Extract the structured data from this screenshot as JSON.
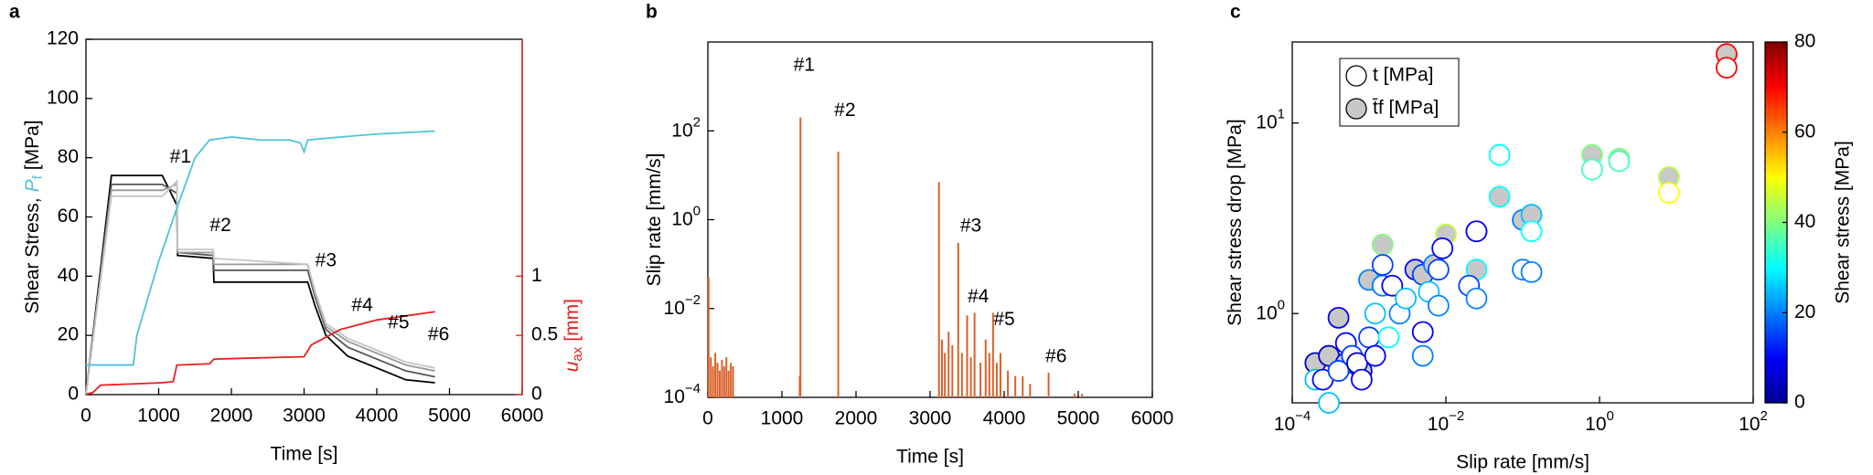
{
  "chart_data": [
    {
      "type": "line",
      "panel": "a",
      "xlabel": "Time [s]",
      "xlim": [
        0,
        6000
      ],
      "xticks": [
        0,
        1000,
        2000,
        3000,
        4000,
        5000,
        6000
      ],
      "ylim": [
        0,
        120
      ],
      "yticks": [
        0,
        20,
        40,
        60,
        80,
        100,
        120
      ],
      "y2lim": [
        0,
        3
      ],
      "y2ticks": [
        0,
        0.5,
        1
      ],
      "y2color": "#e8201f",
      "ylabel": "Shear Stress,",
      "ylabel_symbol": "P",
      "ylabel_subscript": "f",
      "ylabel_unit": "[MPa]",
      "ylabel_symbol_color": "#4fc3d9",
      "y2label_symbol": "u",
      "y2label_subscript": "ax",
      "y2label_unit": "[mm]",
      "series": [
        {
          "color": "#000000",
          "x": [
            0,
            350,
            1050,
            1250,
            1260,
            1750,
            1760,
            3050,
            3150,
            3300,
            3600,
            4000,
            4400,
            4800
          ],
          "values": [
            0,
            74,
            74,
            64,
            47,
            46,
            38,
            38,
            30,
            20,
            13,
            9,
            5,
            4
          ]
        },
        {
          "color": "#555555",
          "x": [
            0,
            350,
            1050,
            1250,
            1260,
            1750,
            1760,
            3050,
            3150,
            3300,
            3600,
            4000,
            4400,
            4800
          ],
          "values": [
            0,
            71,
            71,
            68,
            48,
            47,
            42,
            42,
            33,
            22,
            16,
            12,
            8,
            6
          ]
        },
        {
          "color": "#999999",
          "x": [
            0,
            350,
            1050,
            1250,
            1260,
            1750,
            1760,
            3050,
            3150,
            3300,
            3600,
            4000,
            4400,
            4800
          ],
          "values": [
            0,
            69,
            69,
            71,
            48,
            48,
            44,
            44,
            34,
            23,
            18,
            14,
            10,
            8
          ]
        },
        {
          "color": "#c4c4c4",
          "x": [
            0,
            350,
            1050,
            1250,
            1260,
            1750,
            1760,
            3050,
            3150,
            3300,
            3600,
            4000,
            4400,
            4800
          ],
          "values": [
            0,
            67,
            67,
            72,
            49,
            49,
            46,
            44,
            35,
            24,
            19,
            15,
            11,
            9
          ]
        },
        {
          "color": "#4fc3d9",
          "x": [
            0,
            650,
            700,
            1000,
            1250,
            1500,
            1700,
            2000,
            2400,
            2800,
            2950,
            3000,
            3050,
            3500,
            4000,
            4800
          ],
          "values": [
            10,
            10,
            20,
            45,
            63,
            80,
            86,
            87,
            86,
            86,
            85,
            82,
            86,
            87,
            88,
            89
          ]
        },
        {
          "color": "#e8201f",
          "axis": "y2",
          "x": [
            0,
            100,
            200,
            1050,
            1200,
            1250,
            1700,
            1760,
            3000,
            3100,
            3500,
            4000,
            4800
          ],
          "values": [
            0,
            0.02,
            0.08,
            0.1,
            0.11,
            0.25,
            0.26,
            0.3,
            0.32,
            0.42,
            0.55,
            0.63,
            0.7
          ]
        }
      ],
      "annotations": [
        {
          "text": "#1",
          "x": 1300,
          "y": 80
        },
        {
          "text": "#2",
          "x": 1850,
          "y": 57
        },
        {
          "text": "#3",
          "x": 3300,
          "y": 45
        },
        {
          "text": "#4",
          "x": 3800,
          "y": 30
        },
        {
          "text": "#5",
          "x": 4300,
          "y": 24
        },
        {
          "text": "#6",
          "x": 4850,
          "y": 20
        }
      ]
    },
    {
      "type": "spike",
      "panel": "b",
      "xlabel": "Time [s]",
      "ylabel": "Slip rate [mm/s]",
      "ylog": true,
      "xlim": [
        0,
        6000
      ],
      "xticks": [
        0,
        1000,
        2000,
        3000,
        4000,
        5000,
        6000
      ],
      "ylim": [
        0.0001,
        10000
      ],
      "yticks": [
        {
          "value": 0.0001,
          "label": "10",
          "power": "−4"
        },
        {
          "value": 0.01,
          "label": "10",
          "power": "−2"
        },
        {
          "value": 1,
          "label": "10",
          "power": "0"
        },
        {
          "value": 100,
          "label": "10",
          "power": "2"
        }
      ],
      "series": [
        {
          "color": "#d9622b",
          "x": [
            10,
            40,
            70,
            100,
            130,
            160,
            190,
            220,
            250,
            280,
            310,
            340,
            1240,
            1250,
            1760,
            3120,
            3160,
            3200,
            3250,
            3300,
            3380,
            3430,
            3500,
            3550,
            3600,
            3680,
            3750,
            3800,
            3850,
            3900,
            3950,
            4050,
            4150,
            4250,
            4350,
            4600,
            4950,
            5050
          ],
          "values": [
            0.05,
            0.0008,
            0.0005,
            0.001,
            0.0006,
            0.0004,
            0.0007,
            0.0005,
            0.0008,
            0.0004,
            0.0006,
            0.0005,
            0.0003,
            200,
            34,
            7,
            0.002,
            0.001,
            0.003,
            0.0015,
            0.3,
            0.001,
            0.007,
            0.0008,
            0.008,
            0.0006,
            0.002,
            0.001,
            0.008,
            0.0006,
            0.001,
            0.0004,
            0.0003,
            0.0003,
            0.0002,
            0.00036,
            0.00012,
            0.00012
          ]
        }
      ],
      "annotations": [
        {
          "text": "#1",
          "x": 1300,
          "y": 2900
        },
        {
          "text": "#2",
          "x": 1850,
          "y": 280
        },
        {
          "text": "#3",
          "x": 3550,
          "y": 0.7
        },
        {
          "text": "#4",
          "x": 3650,
          "y": 0.018
        },
        {
          "text": "#5",
          "x": 4000,
          "y": 0.0055
        },
        {
          "text": "#6",
          "x": 4700,
          "y": 0.0008
        }
      ]
    },
    {
      "type": "scatter",
      "panel": "c",
      "xlabel": "Slip rate [mm/s]",
      "ylabel": "Shear stress drop [MPa]",
      "xlog": true,
      "ylog": true,
      "xlim": [
        0.0001,
        100
      ],
      "ylim": [
        0.34,
        26.6
      ],
      "xticks": [
        {
          "value": 0.0001,
          "label": "10",
          "power": "−4"
        },
        {
          "value": 0.01,
          "label": "10",
          "power": "−2"
        },
        {
          "value": 1,
          "label": "10",
          "power": "0"
        },
        {
          "value": 100,
          "label": "10",
          "power": "2"
        }
      ],
      "yticks": [
        {
          "value": 1,
          "label": "10",
          "power": "0"
        },
        {
          "value": 10,
          "label": "10",
          "power": "1"
        }
      ],
      "legend": "upper left",
      "colorbar": {
        "label": "Shear stress [MPa]",
        "lim": [
          0,
          80
        ],
        "ticks": [
          0,
          20,
          40,
          60,
          80
        ]
      },
      "series": [
        {
          "name": "t [MPa]",
          "fill": "#ffffff",
          "x": [
            0.0002,
            0.00025,
            0.0003,
            0.0004,
            0.0005,
            0.0006,
            0.0007,
            0.0008,
            0.001,
            0.0012,
            0.0012,
            0.0015,
            0.0015,
            0.0018,
            0.002,
            0.0025,
            0.003,
            0.005,
            0.005,
            0.006,
            0.008,
            0.008,
            0.009,
            0.02,
            0.025,
            0.025,
            0.05,
            0.1,
            0.13,
            0.13,
            0.8,
            1.8,
            8,
            45
          ],
          "values": [
            0.45,
            0.45,
            0.34,
            0.5,
            0.7,
            0.6,
            0.55,
            0.45,
            0.75,
            0.6,
            1.0,
            1.4,
            1.8,
            0.75,
            1.4,
            1.0,
            1.2,
            0.6,
            0.8,
            1.3,
            1.1,
            1.7,
            2.2,
            1.4,
            1.2,
            2.7,
            6.8,
            1.7,
            1.65,
            2.7,
            5.7,
            6.3,
            4.3,
            19.5
          ],
          "stress": [
            25,
            10,
            25,
            15,
            10,
            15,
            5,
            10,
            15,
            10,
            25,
            20,
            15,
            30,
            10,
            20,
            25,
            20,
            10,
            25,
            20,
            15,
            10,
            15,
            20,
            10,
            30,
            20,
            20,
            30,
            35,
            35,
            50,
            70
          ]
        },
        {
          "name": "t̄f [MPa]",
          "fill": "#c8c8c8",
          "x": [
            0.0002,
            0.0003,
            0.0004,
            0.0005,
            0.0008,
            0.001,
            0.0015,
            0.0015,
            0.004,
            0.005,
            0.007,
            0.01,
            0.025,
            0.025,
            0.05,
            0.1,
            0.13,
            0.8,
            1.8,
            8,
            45
          ],
          "values": [
            0.55,
            0.6,
            0.95,
            0.55,
            0.5,
            1.5,
            2.3,
            1.4,
            1.7,
            1.6,
            1.8,
            2.6,
            2.7,
            1.7,
            4.1,
            3.1,
            3.3,
            6.8,
            6.5,
            5.2,
            23
          ],
          "stress": [
            5,
            5,
            10,
            10,
            10,
            20,
            40,
            5,
            10,
            15,
            20,
            45,
            5,
            30,
            30,
            20,
            25,
            40,
            40,
            45,
            70
          ]
        }
      ]
    }
  ]
}
